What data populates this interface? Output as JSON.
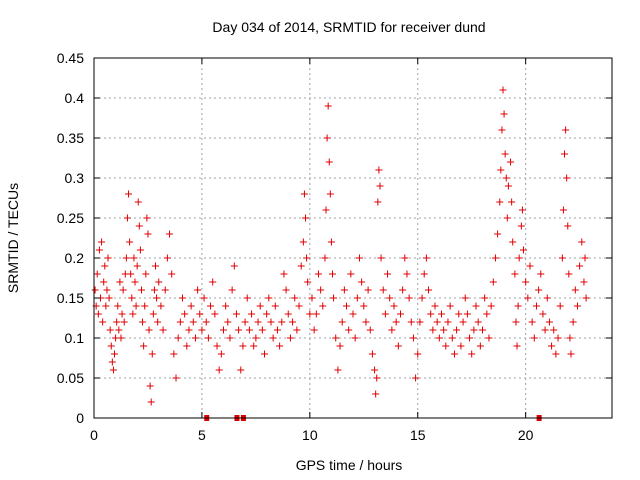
{
  "chart_data": {
    "type": "scatter",
    "title": "Day 034 of 2014, SRMTID for receiver dund",
    "xlabel": "GPS time / hours",
    "ylabel": "SRMTID / TECUs",
    "xlim": [
      0,
      24
    ],
    "ylim": [
      0,
      0.45
    ],
    "x_ticks": [
      0,
      5,
      10,
      15,
      20
    ],
    "y_ticks": [
      0,
      0.05,
      0.1,
      0.15,
      0.2,
      0.25,
      0.3,
      0.35,
      0.4,
      0.45
    ],
    "x_tick_labels": [
      "0",
      "5",
      "10",
      "15",
      "20"
    ],
    "y_tick_labels": [
      "0",
      "0.05",
      "0.1",
      "0.15",
      "0.2",
      "0.25",
      "0.3",
      "0.35",
      "0.4",
      "0.45"
    ],
    "grid": true,
    "legend": "none",
    "marker": "+",
    "colors": {
      "series": "#e00000",
      "grid": "#a0a0a0",
      "axis": "#000000"
    },
    "zero_markers_x": [
      5.2,
      6.6,
      6.9,
      20.6
    ],
    "series": [
      {
        "name": "SRMTID",
        "points": [
          [
            0.05,
            0.16
          ],
          [
            0.1,
            0.14
          ],
          [
            0.15,
            0.18
          ],
          [
            0.2,
            0.13
          ],
          [
            0.25,
            0.21
          ],
          [
            0.3,
            0.15
          ],
          [
            0.35,
            0.22
          ],
          [
            0.4,
            0.12
          ],
          [
            0.45,
            0.17
          ],
          [
            0.5,
            0.19
          ],
          [
            0.55,
            0.14
          ],
          [
            0.6,
            0.16
          ],
          [
            0.65,
            0.2
          ],
          [
            0.7,
            0.15
          ],
          [
            0.75,
            0.11
          ],
          [
            0.8,
            0.09
          ],
          [
            0.85,
            0.07
          ],
          [
            0.9,
            0.06
          ],
          [
            0.95,
            0.08
          ],
          [
            1.0,
            0.1
          ],
          [
            1.05,
            0.12
          ],
          [
            1.1,
            0.14
          ],
          [
            1.15,
            0.11
          ],
          [
            1.2,
            0.17
          ],
          [
            1.25,
            0.1
          ],
          [
            1.3,
            0.13
          ],
          [
            1.35,
            0.16
          ],
          [
            1.4,
            0.12
          ],
          [
            1.45,
            0.18
          ],
          [
            1.5,
            0.2
          ],
          [
            1.55,
            0.25
          ],
          [
            1.6,
            0.28
          ],
          [
            1.65,
            0.22
          ],
          [
            1.7,
            0.18
          ],
          [
            1.75,
            0.15
          ],
          [
            1.8,
            0.13
          ],
          [
            1.85,
            0.2
          ],
          [
            1.9,
            0.17
          ],
          [
            1.95,
            0.14
          ],
          [
            2.0,
            0.19
          ],
          [
            2.05,
            0.27
          ],
          [
            2.1,
            0.24
          ],
          [
            2.15,
            0.21
          ],
          [
            2.2,
            0.16
          ],
          [
            2.25,
            0.12
          ],
          [
            2.3,
            0.09
          ],
          [
            2.35,
            0.14
          ],
          [
            2.4,
            0.18
          ],
          [
            2.45,
            0.25
          ],
          [
            2.5,
            0.23
          ],
          [
            2.55,
            0.11
          ],
          [
            2.6,
            0.04
          ],
          [
            2.65,
            0.02
          ],
          [
            2.7,
            0.08
          ],
          [
            2.75,
            0.13
          ],
          [
            2.8,
            0.16
          ],
          [
            2.85,
            0.19
          ],
          [
            2.9,
            0.15
          ],
          [
            2.95,
            0.12
          ],
          [
            3.0,
            0.17
          ],
          [
            3.1,
            0.14
          ],
          [
            3.2,
            0.11
          ],
          [
            3.3,
            0.16
          ],
          [
            3.4,
            0.2
          ],
          [
            3.5,
            0.23
          ],
          [
            3.6,
            0.18
          ],
          [
            3.7,
            0.08
          ],
          [
            3.8,
            0.05
          ],
          [
            3.9,
            0.1
          ],
          [
            4.0,
            0.12
          ],
          [
            4.1,
            0.15
          ],
          [
            4.2,
            0.13
          ],
          [
            4.3,
            0.09
          ],
          [
            4.4,
            0.11
          ],
          [
            4.5,
            0.14
          ],
          [
            4.6,
            0.12
          ],
          [
            4.7,
            0.1
          ],
          [
            4.8,
            0.16
          ],
          [
            4.9,
            0.13
          ],
          [
            5.0,
            0.11
          ],
          [
            5.1,
            0.15
          ],
          [
            5.2,
            0.12
          ],
          [
            5.3,
            0.1
          ],
          [
            5.4,
            0.14
          ],
          [
            5.5,
            0.17
          ],
          [
            5.6,
            0.13
          ],
          [
            5.7,
            0.09
          ],
          [
            5.8,
            0.06
          ],
          [
            5.9,
            0.08
          ],
          [
            6.0,
            0.11
          ],
          [
            6.1,
            0.14
          ],
          [
            6.2,
            0.12
          ],
          [
            6.3,
            0.1
          ],
          [
            6.4,
            0.16
          ],
          [
            6.5,
            0.19
          ],
          [
            6.6,
            0.13
          ],
          [
            6.7,
            0.11
          ],
          [
            6.8,
            0.06
          ],
          [
            6.9,
            0.09
          ],
          [
            7.0,
            0.12
          ],
          [
            7.1,
            0.15
          ],
          [
            7.2,
            0.11
          ],
          [
            7.3,
            0.13
          ],
          [
            7.4,
            0.09
          ],
          [
            7.5,
            0.1
          ],
          [
            7.6,
            0.12
          ],
          [
            7.7,
            0.14
          ],
          [
            7.8,
            0.11
          ],
          [
            7.9,
            0.08
          ],
          [
            8.0,
            0.13
          ],
          [
            8.1,
            0.15
          ],
          [
            8.2,
            0.12
          ],
          [
            8.3,
            0.1
          ],
          [
            8.4,
            0.14
          ],
          [
            8.5,
            0.11
          ],
          [
            8.6,
            0.09
          ],
          [
            8.7,
            0.12
          ],
          [
            8.8,
            0.18
          ],
          [
            8.9,
            0.16
          ],
          [
            9.0,
            0.13
          ],
          [
            9.1,
            0.1
          ],
          [
            9.2,
            0.12
          ],
          [
            9.3,
            0.15
          ],
          [
            9.4,
            0.11
          ],
          [
            9.5,
            0.14
          ],
          [
            9.6,
            0.19
          ],
          [
            9.7,
            0.22
          ],
          [
            9.75,
            0.28
          ],
          [
            9.8,
            0.25
          ],
          [
            9.85,
            0.2
          ],
          [
            9.9,
            0.17
          ],
          [
            10.0,
            0.13
          ],
          [
            10.1,
            0.15
          ],
          [
            10.2,
            0.11
          ],
          [
            10.3,
            0.13
          ],
          [
            10.4,
            0.18
          ],
          [
            10.5,
            0.16
          ],
          [
            10.6,
            0.14
          ],
          [
            10.7,
            0.2
          ],
          [
            10.75,
            0.26
          ],
          [
            10.8,
            0.35
          ],
          [
            10.85,
            0.39
          ],
          [
            10.9,
            0.32
          ],
          [
            10.95,
            0.28
          ],
          [
            11.0,
            0.22
          ],
          [
            11.05,
            0.18
          ],
          [
            11.1,
            0.15
          ],
          [
            11.2,
            0.1
          ],
          [
            11.3,
            0.06
          ],
          [
            11.4,
            0.09
          ],
          [
            11.5,
            0.12
          ],
          [
            11.6,
            0.16
          ],
          [
            11.7,
            0.14
          ],
          [
            11.8,
            0.11
          ],
          [
            11.9,
            0.18
          ],
          [
            12.0,
            0.13
          ],
          [
            12.1,
            0.1
          ],
          [
            12.2,
            0.15
          ],
          [
            12.3,
            0.2
          ],
          [
            12.4,
            0.17
          ],
          [
            12.5,
            0.14
          ],
          [
            12.6,
            0.12
          ],
          [
            12.7,
            0.16
          ],
          [
            12.8,
            0.11
          ],
          [
            12.9,
            0.08
          ],
          [
            13.0,
            0.06
          ],
          [
            13.05,
            0.03
          ],
          [
            13.1,
            0.05
          ],
          [
            13.15,
            0.27
          ],
          [
            13.2,
            0.31
          ],
          [
            13.25,
            0.29
          ],
          [
            13.3,
            0.2
          ],
          [
            13.4,
            0.16
          ],
          [
            13.5,
            0.13
          ],
          [
            13.6,
            0.18
          ],
          [
            13.7,
            0.15
          ],
          [
            13.8,
            0.11
          ],
          [
            13.9,
            0.14
          ],
          [
            14.0,
            0.12
          ],
          [
            14.1,
            0.09
          ],
          [
            14.2,
            0.13
          ],
          [
            14.3,
            0.16
          ],
          [
            14.4,
            0.2
          ],
          [
            14.5,
            0.18
          ],
          [
            14.6,
            0.15
          ],
          [
            14.7,
            0.12
          ],
          [
            14.8,
            0.1
          ],
          [
            14.9,
            0.05
          ],
          [
            15.0,
            0.08
          ],
          [
            15.1,
            0.12
          ],
          [
            15.2,
            0.15
          ],
          [
            15.3,
            0.18
          ],
          [
            15.4,
            0.2
          ],
          [
            15.5,
            0.16
          ],
          [
            15.6,
            0.13
          ],
          [
            15.7,
            0.11
          ],
          [
            15.8,
            0.14
          ],
          [
            15.9,
            0.12
          ],
          [
            16.0,
            0.1
          ],
          [
            16.1,
            0.13
          ],
          [
            16.2,
            0.11
          ],
          [
            16.3,
            0.09
          ],
          [
            16.4,
            0.12
          ],
          [
            16.5,
            0.14
          ],
          [
            16.6,
            0.1
          ],
          [
            16.7,
            0.08
          ],
          [
            16.8,
            0.11
          ],
          [
            16.9,
            0.13
          ],
          [
            17.0,
            0.09
          ],
          [
            17.1,
            0.12
          ],
          [
            17.2,
            0.15
          ],
          [
            17.3,
            0.13
          ],
          [
            17.4,
            0.1
          ],
          [
            17.5,
            0.08
          ],
          [
            17.6,
            0.11
          ],
          [
            17.7,
            0.14
          ],
          [
            17.8,
            0.12
          ],
          [
            17.9,
            0.09
          ],
          [
            18.0,
            0.11
          ],
          [
            18.1,
            0.15
          ],
          [
            18.2,
            0.13
          ],
          [
            18.3,
            0.1
          ],
          [
            18.4,
            0.14
          ],
          [
            18.5,
            0.17
          ],
          [
            18.6,
            0.2
          ],
          [
            18.7,
            0.23
          ],
          [
            18.8,
            0.27
          ],
          [
            18.85,
            0.31
          ],
          [
            18.9,
            0.36
          ],
          [
            18.95,
            0.41
          ],
          [
            19.0,
            0.38
          ],
          [
            19.05,
            0.33
          ],
          [
            19.1,
            0.3
          ],
          [
            19.15,
            0.25
          ],
          [
            19.2,
            0.29
          ],
          [
            19.3,
            0.32
          ],
          [
            19.35,
            0.27
          ],
          [
            19.4,
            0.22
          ],
          [
            19.5,
            0.18
          ],
          [
            19.55,
            0.12
          ],
          [
            19.6,
            0.09
          ],
          [
            19.65,
            0.14
          ],
          [
            19.7,
            0.2
          ],
          [
            19.8,
            0.24
          ],
          [
            19.85,
            0.26
          ],
          [
            19.9,
            0.21
          ],
          [
            20.0,
            0.17
          ],
          [
            20.1,
            0.15
          ],
          [
            20.2,
            0.19
          ],
          [
            20.3,
            0.12
          ],
          [
            20.4,
            0.1
          ],
          [
            20.5,
            0.14
          ],
          [
            20.6,
            0.16
          ],
          [
            20.7,
            0.18
          ],
          [
            20.8,
            0.13
          ],
          [
            20.9,
            0.11
          ],
          [
            21.0,
            0.15
          ],
          [
            21.1,
            0.12
          ],
          [
            21.2,
            0.09
          ],
          [
            21.3,
            0.11
          ],
          [
            21.4,
            0.08
          ],
          [
            21.5,
            0.1
          ],
          [
            21.6,
            0.14
          ],
          [
            21.7,
            0.2
          ],
          [
            21.75,
            0.26
          ],
          [
            21.8,
            0.33
          ],
          [
            21.85,
            0.36
          ],
          [
            21.9,
            0.3
          ],
          [
            21.95,
            0.24
          ],
          [
            22.0,
            0.18
          ],
          [
            22.05,
            0.1
          ],
          [
            22.1,
            0.08
          ],
          [
            22.2,
            0.12
          ],
          [
            22.3,
            0.16
          ],
          [
            22.4,
            0.14
          ],
          [
            22.5,
            0.19
          ],
          [
            22.6,
            0.22
          ],
          [
            22.7,
            0.17
          ],
          [
            22.75,
            0.2
          ],
          [
            22.8,
            0.15
          ]
        ]
      }
    ]
  }
}
